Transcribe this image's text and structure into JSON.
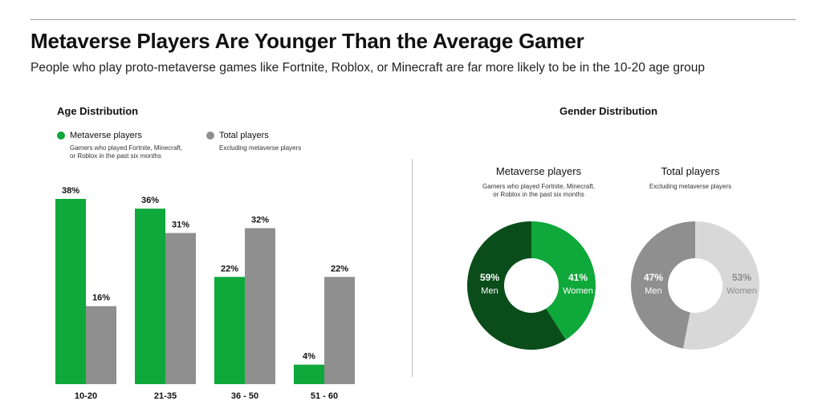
{
  "title": "Metaverse Players Are Younger Than the Average Gamer",
  "subtitle": "People who play proto-metaverse games like Fortnite, Roblox, or Minecraft are far more likely to be in the 10-20 age group",
  "colors": {
    "metaverse": "#0fa83a",
    "total": "#8f8f8f",
    "metaverse_dark": "#0a4d1a",
    "metaverse_light": "#0fa83a",
    "total_dark": "#8f8f8f",
    "total_light": "#d8d8d8"
  },
  "age_section": {
    "title": "Age Distribution",
    "legend": [
      {
        "name": "Metaverse players",
        "note_line1": "Gamers who played  Fortnite, Minecraft,",
        "note_line2": "or Roblox in the past six months"
      },
      {
        "name": "Total players",
        "note_line1": "Excluding metaverse players",
        "note_line2": ""
      }
    ]
  },
  "gender_section": {
    "title": "Gender Distribution",
    "donuts": [
      {
        "title": "Metaverse players",
        "note_line1": "Gamers who played  Fortnite, Minecraft,",
        "note_line2": "or Roblox in the past six months"
      },
      {
        "title": "Total players",
        "note_line1": "Excluding metaverse players",
        "note_line2": ""
      }
    ]
  },
  "chart_data": [
    {
      "type": "bar",
      "title": "Age Distribution",
      "categories": [
        "10-20",
        "21-35",
        "36 - 50",
        "51 - 60"
      ],
      "series": [
        {
          "name": "Metaverse players",
          "values": [
            38,
            36,
            22,
            4
          ],
          "labels": [
            "38%",
            "36%",
            "22%",
            "4%"
          ]
        },
        {
          "name": "Total players",
          "values": [
            16,
            31,
            32,
            22
          ],
          "labels": [
            "16%",
            "31%",
            "32%",
            "22%"
          ]
        }
      ],
      "ylim": [
        0,
        40
      ],
      "grid": false,
      "legend": "top-left"
    },
    {
      "type": "pie",
      "title": "Metaverse players",
      "slices": [
        {
          "label": "Women",
          "value": 41,
          "text": "41%"
        },
        {
          "label": "Men",
          "value": 59,
          "text": "59%"
        }
      ]
    },
    {
      "type": "pie",
      "title": "Total players",
      "slices": [
        {
          "label": "Women",
          "value": 53,
          "text": "53%"
        },
        {
          "label": "Men",
          "value": 47,
          "text": "47%"
        }
      ]
    }
  ]
}
